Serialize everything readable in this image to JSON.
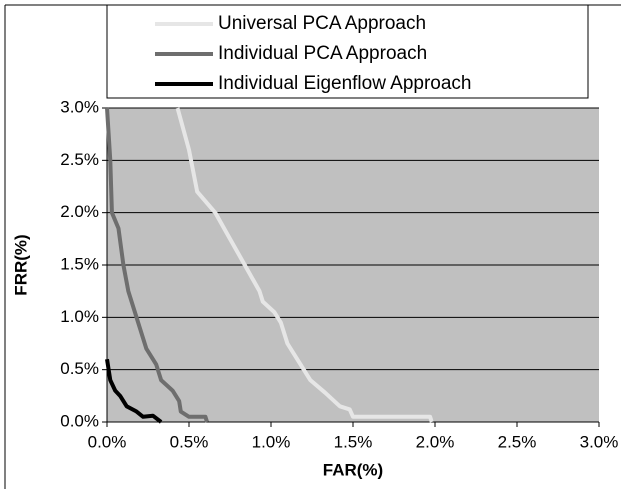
{
  "chart_data": {
    "type": "line",
    "xlabel": "FAR(%)",
    "ylabel": "FRR(%)",
    "xlim": [
      0,
      3
    ],
    "ylim": [
      0,
      3
    ],
    "xticks": [
      {
        "value": 0,
        "label": "0.0%"
      },
      {
        "value": 0.5,
        "label": "0.5%"
      },
      {
        "value": 1,
        "label": "1.0%"
      },
      {
        "value": 1.5,
        "label": "1.5%"
      },
      {
        "value": 2,
        "label": "2.0%"
      },
      {
        "value": 2.5,
        "label": "2.5%"
      },
      {
        "value": 3,
        "label": "3.0%"
      }
    ],
    "yticks": [
      {
        "value": 0,
        "label": "0.0%"
      },
      {
        "value": 0.5,
        "label": "0.5%"
      },
      {
        "value": 1,
        "label": "1.0%"
      },
      {
        "value": 1.5,
        "label": "1.5%"
      },
      {
        "value": 2,
        "label": "2.0%"
      },
      {
        "value": 2.5,
        "label": "2.5%"
      },
      {
        "value": 3,
        "label": "3.0%"
      }
    ],
    "grid": true,
    "background": "#c0c0c0",
    "series": [
      {
        "name": "Universal PCA Approach",
        "color": "#e6e6e6",
        "x": [
          0.43,
          0.5,
          0.55,
          0.66,
          0.75,
          0.84,
          0.93,
          0.95,
          1.02,
          1.06,
          1.1,
          1.18,
          1.24,
          1.33,
          1.42,
          1.48,
          1.5,
          1.97,
          1.98
        ],
        "values": [
          3.0,
          2.6,
          2.2,
          2.0,
          1.75,
          1.5,
          1.25,
          1.15,
          1.05,
          0.95,
          0.75,
          0.55,
          0.4,
          0.28,
          0.15,
          0.12,
          0.05,
          0.05,
          0.0
        ]
      },
      {
        "name": "Individual PCA Approach",
        "color": "#6e6e6e",
        "x": [
          0.0,
          0.02,
          0.03,
          0.07,
          0.1,
          0.13,
          0.17,
          0.2,
          0.24,
          0.3,
          0.33,
          0.4,
          0.44,
          0.45,
          0.5,
          0.6,
          0.61
        ],
        "values": [
          3.0,
          2.5,
          2.0,
          1.85,
          1.5,
          1.25,
          1.05,
          0.9,
          0.7,
          0.55,
          0.4,
          0.3,
          0.2,
          0.1,
          0.05,
          0.05,
          0.0
        ]
      },
      {
        "name": "Individual Eigenflow Approach",
        "color": "#000000",
        "x": [
          0.0,
          0.02,
          0.05,
          0.08,
          0.12,
          0.18,
          0.22,
          0.28,
          0.33
        ],
        "values": [
          0.6,
          0.4,
          0.3,
          0.25,
          0.15,
          0.1,
          0.05,
          0.06,
          0.0
        ]
      }
    ]
  }
}
